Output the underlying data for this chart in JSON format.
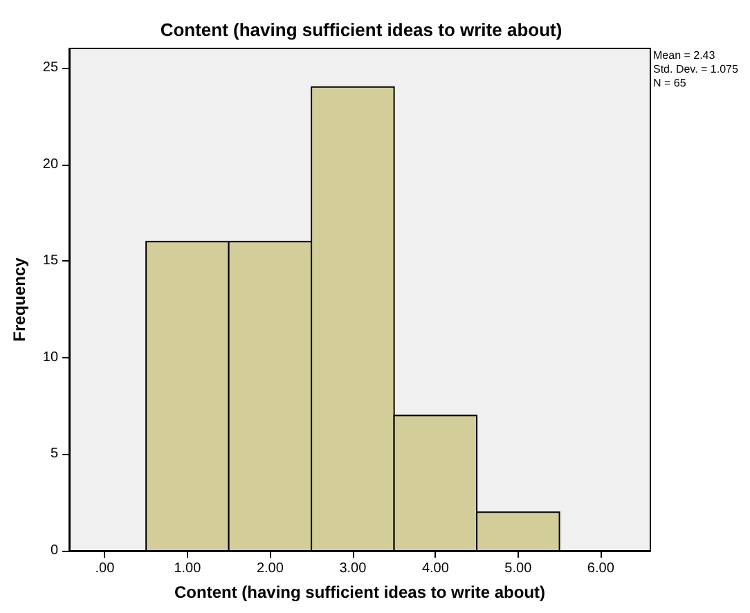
{
  "chart_data": {
    "type": "histogram",
    "title": "Content (having sufficient ideas to write about)",
    "xlabel": "Content (having sufficient ideas to write about)",
    "ylabel": "Frequency",
    "bins": [
      0.5,
      1.5,
      2.5,
      3.5,
      4.5,
      5.5
    ],
    "values": [
      16,
      16,
      24,
      7,
      2
    ],
    "color": "#d3ce99",
    "xlim": [
      -0.43,
      6.6
    ],
    "xticks": [
      {
        "value": 0,
        "label": ".00"
      },
      {
        "value": 1,
        "label": "1.00"
      },
      {
        "value": 2,
        "label": "2.00"
      },
      {
        "value": 3,
        "label": "3.00"
      },
      {
        "value": 4,
        "label": "4.00"
      },
      {
        "value": 5,
        "label": "5.00"
      },
      {
        "value": 6,
        "label": "6.00"
      }
    ],
    "ylim": [
      0,
      26
    ],
    "yticks": [
      0,
      5,
      10,
      15,
      20,
      25
    ],
    "annotations": [
      "Mean = 2.43",
      "Std. Dev. = 1.075",
      "N = 65"
    ],
    "grid": false
  }
}
